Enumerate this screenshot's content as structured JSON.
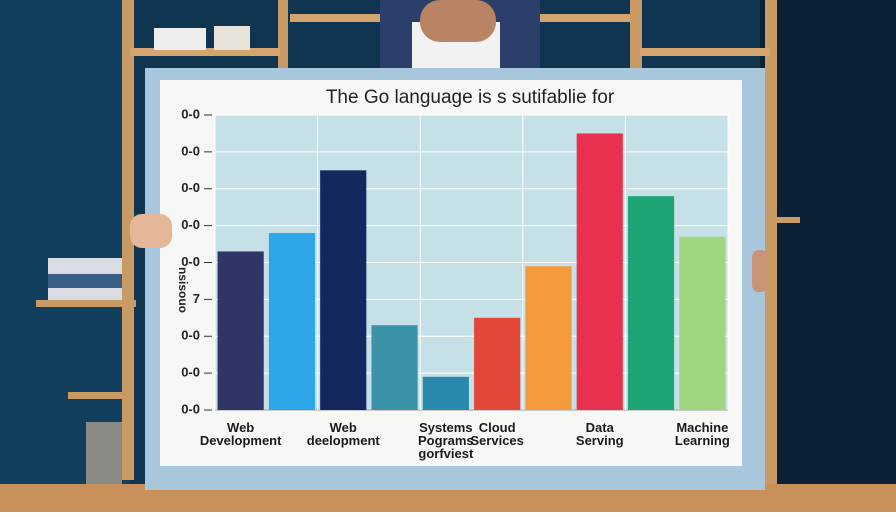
{
  "chart_data": {
    "type": "bar",
    "title": "The Go language is s sutifablie for",
    "ylabel": "nsisouo",
    "categories": [
      "Web\nDevelopment",
      null,
      "Web\ndeelopment",
      null,
      "Systems\nPograms\ngorfviest",
      "Cloud\nServices",
      null,
      "Data\nServing",
      null,
      "Machine\nLearning"
    ],
    "values": [
      4.3,
      4.8,
      6.5,
      2.3,
      0.9,
      2.5,
      3.9,
      7.5,
      5.8,
      4.7
    ],
    "colors": [
      "#2f3566",
      "#2fa6e8",
      "#14285e",
      "#3a93a8",
      "#2a8aad",
      "#e2483a",
      "#f59a3c",
      "#e8324f",
      "#1fa476",
      "#9fd67f"
    ],
    "ylim": [
      0,
      8
    ],
    "yticks": [
      {
        "value": 0,
        "label": "0-0"
      },
      {
        "value": 1,
        "label": "0-0"
      },
      {
        "value": 2,
        "label": "0-0"
      },
      {
        "value": 3,
        "label": "7"
      },
      {
        "value": 4,
        "label": "0-0"
      },
      {
        "value": 5,
        "label": "0-0"
      },
      {
        "value": 6,
        "label": "0-0"
      },
      {
        "value": 7,
        "label": "0-0"
      },
      {
        "value": 8,
        "label": "0-0"
      }
    ],
    "grid": true
  }
}
